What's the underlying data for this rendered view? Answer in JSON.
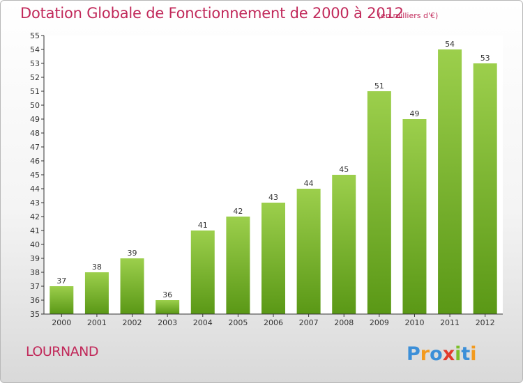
{
  "header": {
    "title": "Dotation Globale de Fonctionnement de 2000 à 2012",
    "subtitle": "(en milliers d'€)"
  },
  "footer": {
    "commune": "LOURNAND",
    "brand": "Proxiti"
  },
  "colors": {
    "accent": "#c1295a",
    "bar_light": "#9ccf4c",
    "bar_dark": "#5a9816",
    "brand_p": "#3c8fd8",
    "brand_r": "#f39a1e",
    "brand_o": "#3c8fd8",
    "brand_x": "#e23a2c",
    "brand_i": "#7cbf2a",
    "brand_t": "#3c8fd8"
  },
  "chart_data": {
    "type": "bar",
    "title": "Dotation Globale de Fonctionnement de 2000 à 2012",
    "subtitle": "(en milliers d'€)",
    "xlabel": "",
    "ylabel": "",
    "categories": [
      "2000",
      "2001",
      "2002",
      "2003",
      "2004",
      "2005",
      "2006",
      "2007",
      "2008",
      "2009",
      "2010",
      "2011",
      "2012"
    ],
    "values": [
      37,
      38,
      39,
      36,
      41,
      42,
      43,
      44,
      45,
      51,
      49,
      54,
      53
    ],
    "ylim": [
      35,
      55
    ],
    "ytick_step": 1,
    "grid": false,
    "legend": "none",
    "data_labels": true
  }
}
